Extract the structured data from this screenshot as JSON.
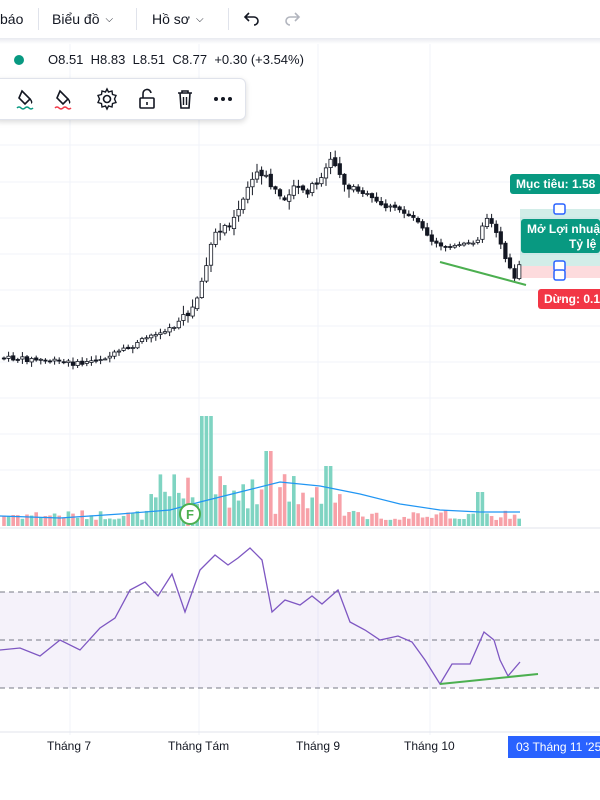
{
  "topbar": {
    "left_fragment": "báo",
    "chart_menu": "Biểu đồ",
    "profile_menu": "Hồ sơ"
  },
  "legend": {
    "open": "O8.51",
    "high": "H8.83",
    "low": "L8.51",
    "close": "C8.77",
    "change": "+0.30 (+3.54%)",
    "up_color": "#089981"
  },
  "position_tool": {
    "target_label": "Mục tiêu: 1.58",
    "open_label": "Mở Lợi nhuậ",
    "ratio_label": "Tỷ lệ l",
    "stop_label": "Dừng: 0.1",
    "target_color": "#089981",
    "stop_color": "#f23645"
  },
  "volume": {
    "marker_letter": "F"
  },
  "x_axis": {
    "labels": [
      "Tháng 7",
      "Tháng Tám",
      "Tháng 9",
      "Tháng 10"
    ],
    "current_date": "03 Tháng 11 '25"
  },
  "colors": {
    "up": "#089981",
    "down": "#f23645",
    "vol_up": "#7fd4c2",
    "vol_down": "#f7a1a8",
    "ma_line": "#2196f3",
    "rsi_line": "#7e57c2",
    "trend_line": "#4caf50",
    "accent": "#2962ff"
  }
}
